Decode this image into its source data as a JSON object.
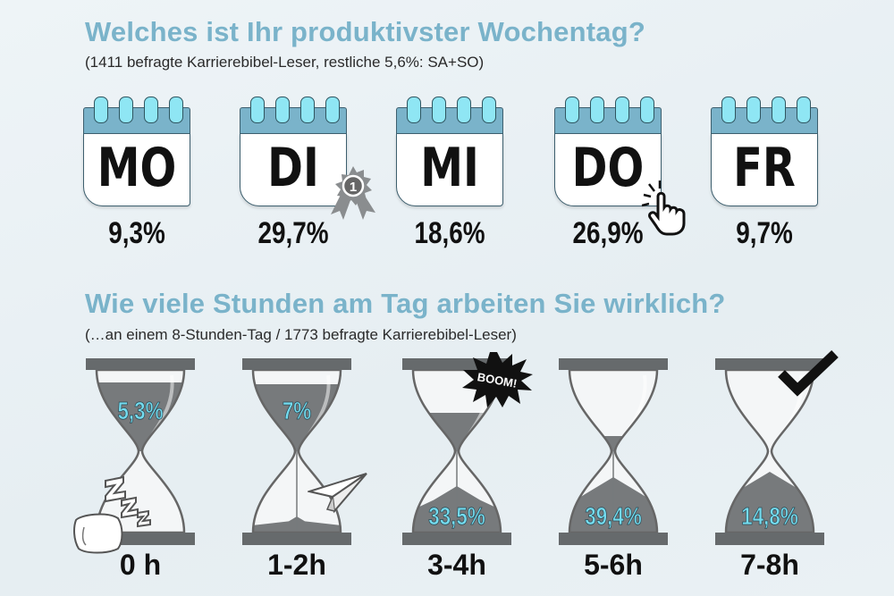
{
  "section1": {
    "title": "Welches ist Ihr produktivster Wochentag?",
    "subtitle": "(1411 befragte Karrierebibel-Leser, restliche 5,6%: SA+SO)"
  },
  "section2": {
    "title": "Wie viele Stunden am Tag arbeiten Sie wirklich?",
    "subtitle": "(…an einem 8-Stunden-Tag / 1773 befragte Karrierebibel-Leser)"
  },
  "decorations": {
    "boom_text": "BOOM!",
    "award_number": "1",
    "icons": [
      "award-ribbon-icon",
      "pointing-hand-icon",
      "sleep-zzz-icon",
      "pillow-icon",
      "paper-plane-icon",
      "boom-burst-icon",
      "checkmark-icon"
    ]
  },
  "colors": {
    "accent": "#7ab3ca",
    "ring": "#8fe6f4",
    "sand": "#777a7c",
    "hourglass_pct": "#74dcef"
  },
  "chart_data": [
    {
      "type": "bar",
      "title": "Welches ist Ihr produktivster Wochentag?",
      "subtitle": "(1411 befragte Karrierebibel-Leser, restliche 5,6%: SA+SO)",
      "categories": [
        "MO",
        "DI",
        "MI",
        "DO",
        "FR"
      ],
      "labels": [
        "9,3%",
        "29,7%",
        "18,6%",
        "26,9%",
        "9,7%"
      ],
      "values": [
        9.3,
        29.7,
        18.6,
        26.9,
        9.7
      ]
    },
    {
      "type": "bar",
      "title": "Wie viele Stunden am Tag arbeiten Sie wirklich?",
      "subtitle": "(…an einem 8-Stunden-Tag / 1773 befragte Karrierebibel-Leser)",
      "categories": [
        "0 h",
        "1-2h",
        "3-4h",
        "5-6h",
        "7-8h"
      ],
      "labels": [
        "5,3%",
        "7%",
        "33,5%",
        "39,4%",
        "14,8%"
      ],
      "values": [
        5.3,
        7.0,
        33.5,
        39.4,
        14.8
      ]
    }
  ]
}
